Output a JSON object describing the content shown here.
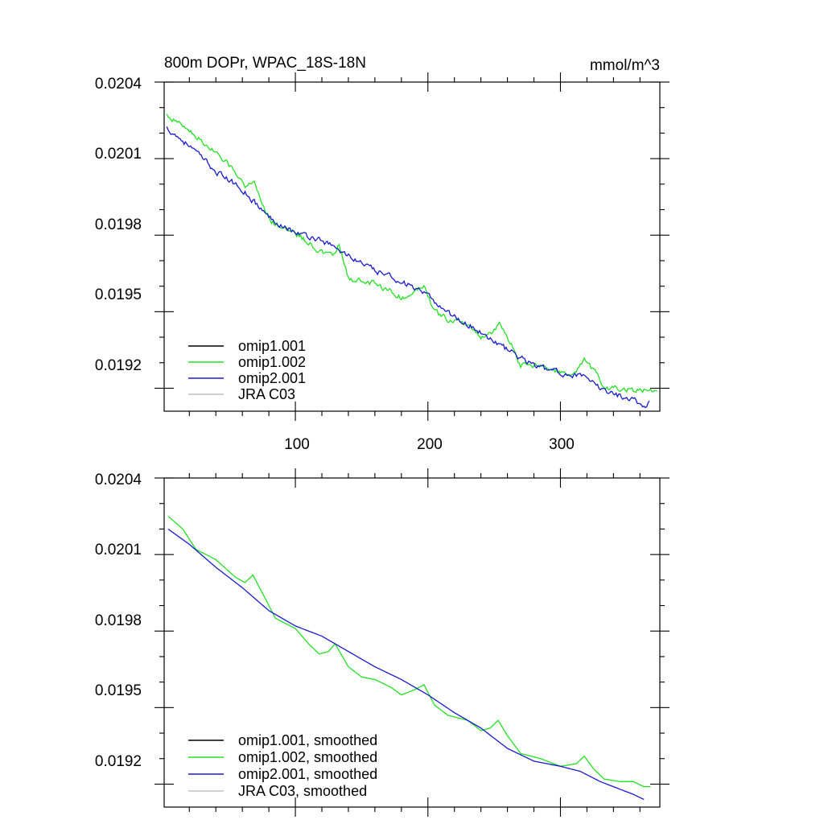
{
  "colors": {
    "omip1_001": "#000000",
    "omip1_002": "#22e122",
    "omip2_001": "#1a1ad0",
    "jra_c03": "#c0c0c0",
    "axis": "#000000"
  },
  "chart_data": [
    {
      "type": "line",
      "title": "800m DOPr, WPAC_18S-18N",
      "units": "mmol/m^3",
      "xlim": [
        1,
        375
      ],
      "ylim": [
        0.01911,
        0.0204
      ],
      "xticks": [
        100,
        200,
        300
      ],
      "xtick_labels": [
        "100",
        "200",
        "300"
      ],
      "yticks": [
        0.0204,
        0.0201,
        0.0198,
        0.0195,
        0.0192
      ],
      "ytick_labels": [
        "0.0204",
        "0.0201",
        "0.0198",
        "0.0195",
        "0.0192"
      ],
      "legend_position": "bottom-left",
      "noise": 1.8e-05,
      "series": [
        {
          "name": "omip1.001",
          "color_key": "omip1_001",
          "anchors": []
        },
        {
          "name": "omip1.002",
          "color_key": "omip1_002",
          "anchors": [
            [
              3,
              0.02027
            ],
            [
              20,
              0.02021
            ],
            [
              40,
              0.02012
            ],
            [
              55,
              0.02005
            ],
            [
              62,
              0.01999
            ],
            [
              68,
              0.02002
            ],
            [
              75,
              0.01993
            ],
            [
              82,
              0.01985
            ],
            [
              100,
              0.01981
            ],
            [
              110,
              0.01977
            ],
            [
              120,
              0.01973
            ],
            [
              128,
              0.01972
            ],
            [
              133,
              0.01976
            ],
            [
              140,
              0.01963
            ],
            [
              150,
              0.01962
            ],
            [
              160,
              0.01961
            ],
            [
              172,
              0.01958
            ],
            [
              182,
              0.01955
            ],
            [
              190,
              0.01958
            ],
            [
              197,
              0.01961
            ],
            [
              205,
              0.0195
            ],
            [
              215,
              0.01947
            ],
            [
              230,
              0.01945
            ],
            [
              240,
              0.0194
            ],
            [
              248,
              0.01942
            ],
            [
              255,
              0.01945
            ],
            [
              262,
              0.01938
            ],
            [
              270,
              0.01929
            ],
            [
              280,
              0.01929
            ],
            [
              292,
              0.01928
            ],
            [
              305,
              0.01925
            ],
            [
              312,
              0.01926
            ],
            [
              318,
              0.01931
            ],
            [
              325,
              0.01927
            ],
            [
              333,
              0.0192
            ],
            [
              345,
              0.0192
            ],
            [
              355,
              0.01919
            ],
            [
              365,
              0.01919
            ],
            [
              373,
              0.01918
            ]
          ]
        },
        {
          "name": "omip2.001",
          "color_key": "omip2_001",
          "anchors": [
            [
              3,
              0.02022
            ],
            [
              20,
              0.02015
            ],
            [
              40,
              0.02005
            ],
            [
              60,
              0.01998
            ],
            [
              80,
              0.01987
            ],
            [
              100,
              0.01981
            ],
            [
              120,
              0.01978
            ],
            [
              140,
              0.01972
            ],
            [
              160,
              0.01966
            ],
            [
              180,
              0.01962
            ],
            [
              200,
              0.01956
            ],
            [
              220,
              0.01948
            ],
            [
              240,
              0.01942
            ],
            [
              260,
              0.01935
            ],
            [
              280,
              0.01929
            ],
            [
              300,
              0.01926
            ],
            [
              315,
              0.01925
            ],
            [
              330,
              0.0192
            ],
            [
              345,
              0.01917
            ],
            [
              355,
              0.01916
            ],
            [
              362,
              0.01913
            ],
            [
              367,
              0.01914
            ]
          ]
        },
        {
          "name": "JRA C03",
          "color_key": "jra_c03",
          "anchors": []
        }
      ]
    },
    {
      "type": "line",
      "title": "",
      "units": "",
      "xlim": [
        1,
        375
      ],
      "ylim": [
        0.01911,
        0.0204
      ],
      "xticks": [
        100,
        200,
        300
      ],
      "xtick_labels": [],
      "yticks": [
        0.0204,
        0.0201,
        0.0198,
        0.0195,
        0.0192
      ],
      "ytick_labels": [
        "0.0204",
        "0.0201",
        "0.0198",
        "0.0195",
        "0.0192"
      ],
      "legend_position": "bottom-left",
      "noise": 0,
      "series": [
        {
          "name": "omip1.001, smoothed",
          "color_key": "omip1_001",
          "anchors": []
        },
        {
          "name": "omip1.002, smoothed",
          "color_key": "omip1_002",
          "anchors": [
            [
              4,
              0.02025
            ],
            [
              15,
              0.0202
            ],
            [
              25,
              0.02012
            ],
            [
              40,
              0.02008
            ],
            [
              55,
              0.02001
            ],
            [
              62,
              0.01999
            ],
            [
              68,
              0.02002
            ],
            [
              75,
              0.01995
            ],
            [
              85,
              0.01985
            ],
            [
              100,
              0.01981
            ],
            [
              110,
              0.01975
            ],
            [
              118,
              0.01971
            ],
            [
              125,
              0.01972
            ],
            [
              130,
              0.01975
            ],
            [
              140,
              0.01966
            ],
            [
              150,
              0.01962
            ],
            [
              160,
              0.01961
            ],
            [
              172,
              0.01958
            ],
            [
              180,
              0.01955
            ],
            [
              190,
              0.01957
            ],
            [
              197,
              0.01959
            ],
            [
              205,
              0.01951
            ],
            [
              215,
              0.01947
            ],
            [
              230,
              0.01945
            ],
            [
              240,
              0.01941
            ],
            [
              247,
              0.01942
            ],
            [
              253,
              0.01945
            ],
            [
              260,
              0.01939
            ],
            [
              270,
              0.01932
            ],
            [
              285,
              0.0193
            ],
            [
              300,
              0.01927
            ],
            [
              312,
              0.01928
            ],
            [
              318,
              0.01931
            ],
            [
              325,
              0.01926
            ],
            [
              333,
              0.01922
            ],
            [
              345,
              0.01921
            ],
            [
              355,
              0.01921
            ],
            [
              363,
              0.01919
            ],
            [
              368,
              0.01919
            ]
          ]
        },
        {
          "name": "omip2.001, smoothed",
          "color_key": "omip2_001",
          "anchors": [
            [
              4,
              0.0202
            ],
            [
              20,
              0.02014
            ],
            [
              40,
              0.02005
            ],
            [
              60,
              0.01997
            ],
            [
              80,
              0.01988
            ],
            [
              100,
              0.01982
            ],
            [
              120,
              0.01978
            ],
            [
              140,
              0.01972
            ],
            [
              160,
              0.01966
            ],
            [
              180,
              0.01961
            ],
            [
              200,
              0.01955
            ],
            [
              220,
              0.01948
            ],
            [
              240,
              0.01942
            ],
            [
              260,
              0.01934
            ],
            [
              280,
              0.01929
            ],
            [
              300,
              0.01927
            ],
            [
              315,
              0.01925
            ],
            [
              330,
              0.01921
            ],
            [
              345,
              0.01918
            ],
            [
              355,
              0.01916
            ],
            [
              363,
              0.01914
            ]
          ]
        },
        {
          "name": "JRA C03, smoothed",
          "color_key": "jra_c03",
          "anchors": []
        }
      ]
    }
  ]
}
